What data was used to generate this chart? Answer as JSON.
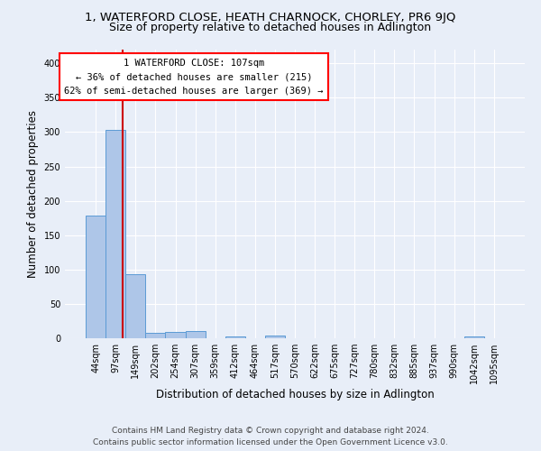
{
  "title": "1, WATERFORD CLOSE, HEATH CHARNOCK, CHORLEY, PR6 9JQ",
  "subtitle": "Size of property relative to detached houses in Adlington",
  "xlabel": "Distribution of detached houses by size in Adlington",
  "ylabel": "Number of detached properties",
  "categories": [
    "44sqm",
    "97sqm",
    "149sqm",
    "202sqm",
    "254sqm",
    "307sqm",
    "359sqm",
    "412sqm",
    "464sqm",
    "517sqm",
    "570sqm",
    "622sqm",
    "675sqm",
    "727sqm",
    "780sqm",
    "832sqm",
    "885sqm",
    "937sqm",
    "990sqm",
    "1042sqm",
    "1095sqm"
  ],
  "values": [
    178,
    303,
    93,
    8,
    9,
    10,
    0,
    3,
    0,
    4,
    0,
    0,
    0,
    0,
    0,
    0,
    0,
    0,
    0,
    3,
    0
  ],
  "bar_color": "#aec6e8",
  "bar_edge_color": "#5b9bd5",
  "vline_x_idx": 1.36,
  "annotation_text_line1": "1 WATERFORD CLOSE: 107sqm",
  "annotation_text_line2": "← 36% of detached houses are smaller (215)",
  "annotation_text_line3": "62% of semi-detached houses are larger (369) →",
  "annotation_box_color": "white",
  "annotation_box_edge": "red",
  "vline_color": "#cc0000",
  "footer_line1": "Contains HM Land Registry data © Crown copyright and database right 2024.",
  "footer_line2": "Contains public sector information licensed under the Open Government Licence v3.0.",
  "ylim": [
    0,
    420
  ],
  "bg_color": "#e8eef8",
  "grid_color": "#ffffff",
  "title_fontsize": 9.5,
  "subtitle_fontsize": 9,
  "xlabel_fontsize": 8.5,
  "ylabel_fontsize": 8.5,
  "tick_fontsize": 7,
  "footer_fontsize": 6.5
}
